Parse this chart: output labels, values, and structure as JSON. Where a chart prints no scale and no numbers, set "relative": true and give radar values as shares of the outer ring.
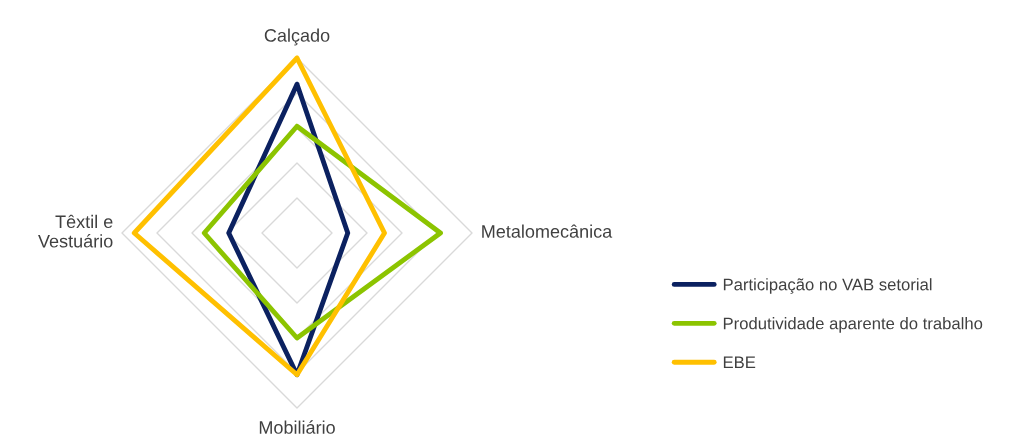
{
  "chart_data": {
    "type": "radar",
    "relative": true,
    "categories": [
      "Calçado",
      "Metalomecânica",
      "Mobiliário",
      "Têxtil e Vestuário"
    ],
    "series": [
      {
        "name": "Participação no VAB setorial",
        "color": "#0b2160",
        "values": [
          0.85,
          0.29,
          0.81,
          0.39
        ]
      },
      {
        "name": "Produtividade aparente do trabalho",
        "color": "#8cc400",
        "values": [
          0.61,
          0.82,
          0.6,
          0.53
        ]
      },
      {
        "name": "EBE",
        "color": "#ffc000",
        "values": [
          1.0,
          0.5,
          0.81,
          0.93
        ]
      }
    ],
    "grid": true,
    "legend": "right",
    "line_style": "solid",
    "marker": "none"
  }
}
